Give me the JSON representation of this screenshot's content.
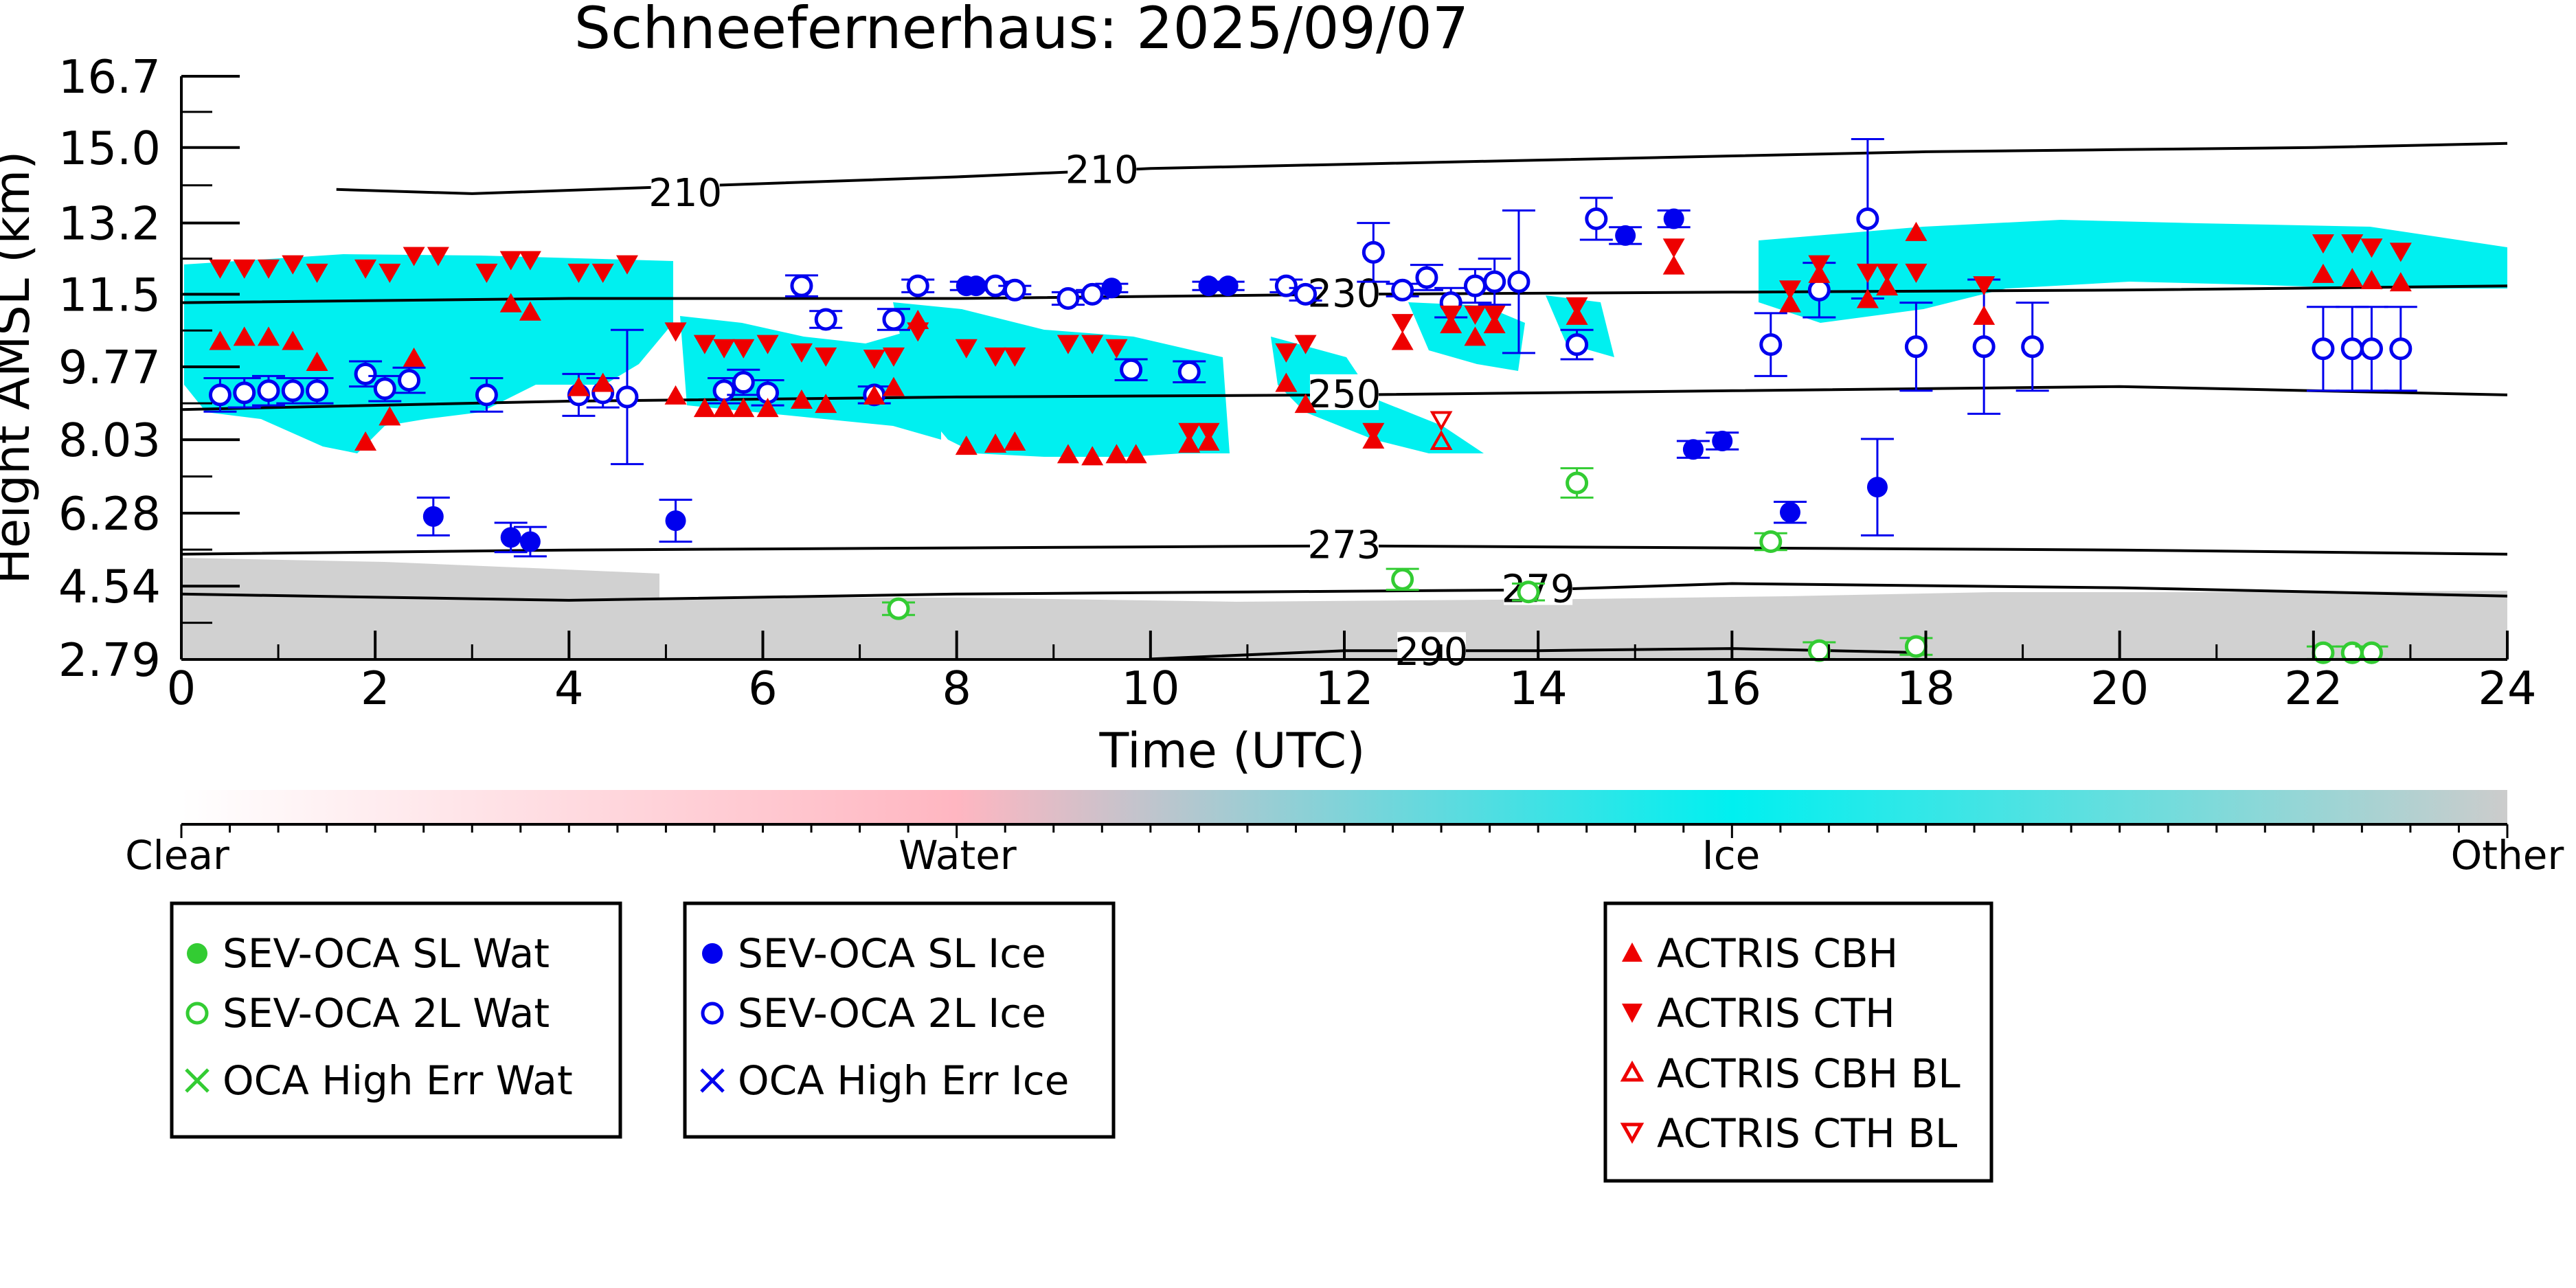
{
  "chart_data": {
    "type": "scatter",
    "title": "Schneefernerhaus: 2025/09/07",
    "xlabel": "Time (UTC)",
    "ylabel": "Height AMSL (km)",
    "xlim": [
      0,
      24
    ],
    "ylim": [
      2.79,
      16.7
    ],
    "xticks": [
      "0",
      "2",
      "4",
      "6",
      "8",
      "10",
      "12",
      "14",
      "16",
      "18",
      "20",
      "22",
      "24"
    ],
    "yticks": [
      "2.79",
      "4.54",
      "6.28",
      "8.03",
      "9.77",
      "11.5",
      "13.2",
      "15.0",
      "16.7"
    ],
    "grid": false,
    "colorbar": {
      "labels": [
        "Clear",
        "Water",
        "Ice",
        "Other"
      ],
      "colors": [
        "#ffffff",
        "#ffb6c1",
        "#00f0f0",
        "#cccccc"
      ]
    },
    "contours": [
      {
        "label": "210",
        "points": [
          [
            1.6,
            14.0
          ],
          [
            3,
            13.9
          ],
          [
            5.5,
            14.1
          ],
          [
            8,
            14.3
          ],
          [
            10,
            14.5
          ],
          [
            12,
            14.6
          ],
          [
            14,
            14.7
          ],
          [
            16,
            14.8
          ],
          [
            18,
            14.9
          ],
          [
            20,
            14.95
          ],
          [
            22,
            15.0
          ],
          [
            24,
            15.1
          ]
        ]
      },
      {
        "label": "230",
        "points": [
          [
            0,
            11.3
          ],
          [
            4,
            11.4
          ],
          [
            8,
            11.4
          ],
          [
            12,
            11.5
          ],
          [
            16,
            11.55
          ],
          [
            20,
            11.6
          ],
          [
            24,
            11.7
          ]
        ]
      },
      {
        "label": "250",
        "points": [
          [
            0,
            8.75
          ],
          [
            4,
            8.95
          ],
          [
            8,
            9.05
          ],
          [
            12,
            9.1
          ],
          [
            16,
            9.2
          ],
          [
            20,
            9.3
          ],
          [
            24,
            9.1
          ]
        ]
      },
      {
        "label": "273",
        "points": [
          [
            0,
            5.3
          ],
          [
            4,
            5.4
          ],
          [
            8,
            5.45
          ],
          [
            12,
            5.5
          ],
          [
            16,
            5.45
          ],
          [
            20,
            5.4
          ],
          [
            24,
            5.3
          ]
        ]
      },
      {
        "label": "279",
        "points": [
          [
            0,
            4.35
          ],
          [
            4,
            4.2
          ],
          [
            8,
            4.35
          ],
          [
            11,
            4.4
          ],
          [
            14,
            4.45
          ],
          [
            16,
            4.6
          ],
          [
            20,
            4.5
          ],
          [
            24,
            4.3
          ]
        ]
      },
      {
        "label": "290",
        "points": [
          [
            10,
            2.8
          ],
          [
            12,
            3.0
          ],
          [
            14,
            3.0
          ],
          [
            16,
            3.05
          ],
          [
            18,
            2.95
          ]
        ]
      }
    ],
    "series": [
      {
        "name": "SEV-OCA SL Wat",
        "marker": "filled-circle",
        "color": "#33cc33",
        "x": [],
        "y": []
      },
      {
        "name": "SEV-OCA 2L Wat",
        "marker": "open-circle",
        "color": "#33cc33",
        "x": [
          7.4,
          12.6,
          13.9,
          14.4,
          16.4,
          16.9,
          17.9,
          22.1,
          22.4,
          22.6
        ],
        "y": [
          4.0,
          4.7,
          4.4,
          7.0,
          5.6,
          3.0,
          3.1,
          2.95,
          2.95,
          2.95
        ],
        "err": [
          0.15,
          0.25,
          0.2,
          0.35,
          0.2,
          0.2,
          0.2,
          0.15,
          0.15,
          0.15
        ]
      },
      {
        "name": "OCA High Err Wat",
        "marker": "x",
        "color": "#33cc33",
        "x": [],
        "y": []
      },
      {
        "name": "SEV-OCA SL Ice",
        "marker": "filled-circle",
        "color": "#0000ee",
        "x": [
          2.6,
          3.4,
          3.6,
          5.1,
          8.1,
          8.2,
          9.6,
          10.6,
          10.8,
          14.9,
          15.4,
          15.6,
          15.9,
          16.6,
          17.5
        ],
        "y": [
          6.2,
          5.7,
          5.6,
          6.1,
          11.7,
          11.7,
          11.65,
          11.7,
          11.7,
          12.9,
          13.3,
          7.8,
          8.0,
          6.3,
          6.9
        ],
        "err": [
          0.45,
          0.35,
          0.35,
          0.5,
          0.1,
          0.1,
          0.1,
          0.1,
          0.1,
          0.2,
          0.2,
          0.2,
          0.2,
          0.25,
          1.15
        ]
      },
      {
        "name": "SEV-OCA 2L Ice",
        "marker": "open-circle",
        "color": "#0000ee",
        "x": [
          0.4,
          0.65,
          0.9,
          1.15,
          1.4,
          1.9,
          2.1,
          2.35,
          3.15,
          4.1,
          4.35,
          4.6,
          5.6,
          5.8,
          6.05,
          6.4,
          6.65,
          7.15,
          7.35,
          7.6,
          8.4,
          8.6,
          9.15,
          9.4,
          9.8,
          10.4,
          11.4,
          11.6,
          12.3,
          12.6,
          12.85,
          13.1,
          13.35,
          13.55,
          13.8,
          14.4,
          14.6,
          16.4,
          16.9,
          17.4,
          17.9,
          18.6,
          19.1,
          22.1,
          22.4,
          22.6,
          22.9
        ],
        "y": [
          9.1,
          9.15,
          9.2,
          9.2,
          9.2,
          9.6,
          9.25,
          9.45,
          9.1,
          9.1,
          9.15,
          9.05,
          9.2,
          9.4,
          9.15,
          11.7,
          10.9,
          9.1,
          10.9,
          11.7,
          11.7,
          11.6,
          11.4,
          11.5,
          9.7,
          9.65,
          11.7,
          11.5,
          12.5,
          11.6,
          11.9,
          11.3,
          11.7,
          11.8,
          11.8,
          10.3,
          13.3,
          10.3,
          11.6,
          13.3,
          10.25,
          10.25,
          10.25,
          10.2,
          10.2,
          10.2,
          10.2
        ],
        "err": [
          0.4,
          0.35,
          0.35,
          0.3,
          0.3,
          0.3,
          0.3,
          0.3,
          0.4,
          0.5,
          0.35,
          1.6,
          0.3,
          0.3,
          0.3,
          0.25,
          0.2,
          0.2,
          0.25,
          0.15,
          0.1,
          0.1,
          0.15,
          0.1,
          0.25,
          0.25,
          0.15,
          0.15,
          0.7,
          0.15,
          0.3,
          0.35,
          0.4,
          0.55,
          1.7,
          0.35,
          0.5,
          0.75,
          0.65,
          1.9,
          1.05,
          1.6,
          1.05,
          1.0,
          1.0,
          1.0,
          1.0
        ]
      },
      {
        "name": "OCA High Err Ice",
        "marker": "x",
        "color": "#0000ee",
        "x": [],
        "y": []
      },
      {
        "name": "ACTRIS CBH",
        "marker": "filled-triangle-up",
        "color": "#ee0000",
        "x": [
          0.4,
          0.65,
          0.9,
          1.15,
          1.4,
          1.9,
          2.15,
          2.4,
          3.4,
          3.6,
          4.1,
          4.35,
          5.1,
          5.4,
          5.6,
          5.8,
          6.05,
          6.4,
          6.65,
          7.15,
          7.35,
          7.6,
          8.1,
          8.4,
          8.6,
          9.15,
          9.4,
          9.65,
          9.85,
          10.4,
          10.6,
          11.4,
          11.6,
          12.3,
          12.6,
          13.1,
          13.35,
          13.55,
          14.4,
          15.4,
          16.6,
          16.9,
          17.4,
          17.6,
          17.9,
          18.6,
          22.1,
          22.4,
          22.6,
          22.9
        ],
        "y": [
          10.4,
          10.5,
          10.5,
          10.4,
          9.9,
          8.0,
          8.6,
          10.0,
          11.3,
          11.1,
          9.3,
          9.4,
          9.1,
          8.8,
          8.8,
          8.8,
          8.8,
          9.0,
          8.9,
          9.1,
          9.3,
          10.9,
          7.9,
          7.95,
          8.0,
          7.7,
          7.65,
          7.7,
          7.7,
          7.95,
          8.0,
          9.4,
          8.9,
          8.05,
          10.4,
          10.8,
          10.5,
          10.8,
          11.0,
          12.2,
          11.3,
          12.0,
          11.4,
          11.7,
          13.0,
          11.0,
          12.0,
          11.9,
          11.85,
          11.8
        ]
      },
      {
        "name": "ACTRIS CTH",
        "marker": "filled-triangle-down",
        "color": "#ee0000",
        "x": [
          0.4,
          0.65,
          0.9,
          1.15,
          1.4,
          1.9,
          2.15,
          2.4,
          2.65,
          3.15,
          3.4,
          3.6,
          4.1,
          4.35,
          4.6,
          5.1,
          5.4,
          5.6,
          5.8,
          6.05,
          6.4,
          6.65,
          7.15,
          7.35,
          7.6,
          8.1,
          8.4,
          8.6,
          9.15,
          9.4,
          9.65,
          10.4,
          10.6,
          11.4,
          11.6,
          12.3,
          12.6,
          13.1,
          13.35,
          13.55,
          14.4,
          15.4,
          16.6,
          16.9,
          17.4,
          17.6,
          17.9,
          18.6,
          22.1,
          22.4,
          22.6,
          22.9
        ],
        "y": [
          12.1,
          12.1,
          12.1,
          12.2,
          12.0,
          12.1,
          12.0,
          12.4,
          12.4,
          12.0,
          12.3,
          12.3,
          12.0,
          12.0,
          12.2,
          10.6,
          10.3,
          10.2,
          10.2,
          10.3,
          10.1,
          10.0,
          9.95,
          10.0,
          10.6,
          10.2,
          10.0,
          10.0,
          10.3,
          10.3,
          10.2,
          8.2,
          8.2,
          10.1,
          10.3,
          8.2,
          10.8,
          11.0,
          11.0,
          11.0,
          11.2,
          12.6,
          11.6,
          12.2,
          12.0,
          12.0,
          12.0,
          11.7,
          12.7,
          12.7,
          12.6,
          12.5
        ]
      },
      {
        "name": "ACTRIS CBH BL",
        "marker": "open-triangle-up",
        "color": "#ee0000",
        "x": [
          13.0
        ],
        "y": [
          8.0
        ]
      },
      {
        "name": "ACTRIS CTH BL",
        "marker": "open-triangle-down",
        "color": "#ee0000",
        "x": [
          13.0
        ],
        "y": [
          8.5
        ]
      }
    ]
  }
}
